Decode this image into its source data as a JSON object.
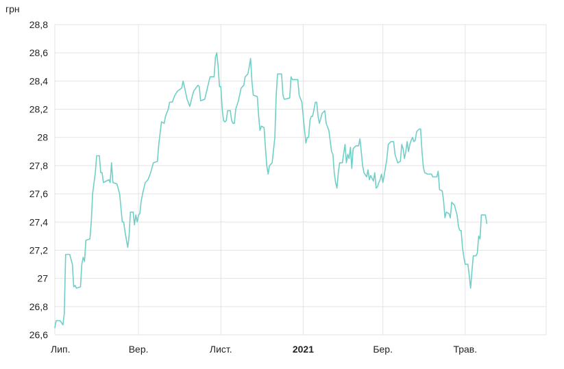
{
  "chart_data": {
    "type": "line",
    "title": "",
    "ylabel": "грн",
    "xlabel": "",
    "ylim": [
      26.6,
      28.8
    ],
    "y_ticks": [
      "28,8",
      "28,6",
      "28,4",
      "28,2",
      "28",
      "27,8",
      "27,6",
      "27,4",
      "27,2",
      "27",
      "26,8",
      "26,6"
    ],
    "x_ticks": [
      {
        "label": "Лип.",
        "date": "2020-07-01",
        "bold": false
      },
      {
        "label": "Вер.",
        "date": "2020-09-01",
        "bold": false
      },
      {
        "label": "Лист.",
        "date": "2020-11-01",
        "bold": false
      },
      {
        "label": "2021",
        "date": "2021-01-01",
        "bold": true
      },
      {
        "label": "Бер.",
        "date": "2021-03-01",
        "bold": false
      },
      {
        "label": "Трав.",
        "date": "2021-05-01",
        "bold": false
      }
    ],
    "x_range": [
      "2020-07-01",
      "2021-06-30"
    ],
    "grid": true,
    "legend": "none",
    "color": "#6fcfc7",
    "series": [
      {
        "values": [
          [
            "2020-07-01",
            26.65
          ],
          [
            "2020-07-02",
            26.7
          ],
          [
            "2020-07-05",
            26.7
          ],
          [
            "2020-07-07",
            26.67
          ],
          [
            "2020-07-08",
            26.75
          ],
          [
            "2020-07-09",
            27.17
          ],
          [
            "2020-07-12",
            27.17
          ],
          [
            "2020-07-14",
            27.1
          ],
          [
            "2020-07-15",
            26.94
          ],
          [
            "2020-07-16",
            26.95
          ],
          [
            "2020-07-17",
            26.93
          ],
          [
            "2020-07-20",
            26.94
          ],
          [
            "2020-07-21",
            27.1
          ],
          [
            "2020-07-22",
            27.15
          ],
          [
            "2020-07-23",
            27.12
          ],
          [
            "2020-07-24",
            27.27
          ],
          [
            "2020-07-27",
            27.28
          ],
          [
            "2020-07-28",
            27.4
          ],
          [
            "2020-07-29",
            27.6
          ],
          [
            "2020-07-31",
            27.75
          ],
          [
            "2020-08-01",
            27.87
          ],
          [
            "2020-08-03",
            27.87
          ],
          [
            "2020-08-04",
            27.75
          ],
          [
            "2020-08-05",
            27.75
          ],
          [
            "2020-08-06",
            27.68
          ],
          [
            "2020-08-10",
            27.7
          ],
          [
            "2020-08-11",
            27.68
          ],
          [
            "2020-08-12",
            27.82
          ],
          [
            "2020-08-13",
            27.68
          ],
          [
            "2020-08-16",
            27.67
          ],
          [
            "2020-08-18",
            27.6
          ],
          [
            "2020-08-20",
            27.4
          ],
          [
            "2020-08-21",
            27.4
          ],
          [
            "2020-08-22",
            27.33
          ],
          [
            "2020-08-24",
            27.22
          ],
          [
            "2020-08-25",
            27.3
          ],
          [
            "2020-08-26",
            27.47
          ],
          [
            "2020-08-28",
            27.47
          ],
          [
            "2020-08-29",
            27.38
          ],
          [
            "2020-08-30",
            27.45
          ],
          [
            "2020-08-31",
            27.4
          ],
          [
            "2020-09-01",
            27.45
          ],
          [
            "2020-09-02",
            27.46
          ],
          [
            "2020-09-03",
            27.55
          ],
          [
            "2020-09-04",
            27.6
          ],
          [
            "2020-09-06",
            27.68
          ],
          [
            "2020-09-08",
            27.7
          ],
          [
            "2020-09-10",
            27.75
          ],
          [
            "2020-09-12",
            27.82
          ],
          [
            "2020-09-15",
            27.83
          ],
          [
            "2020-09-16",
            27.95
          ],
          [
            "2020-09-18",
            28.11
          ],
          [
            "2020-09-20",
            28.1
          ],
          [
            "2020-09-21",
            28.15
          ],
          [
            "2020-09-23",
            28.2
          ],
          [
            "2020-09-24",
            28.25
          ],
          [
            "2020-09-26",
            28.25
          ],
          [
            "2020-09-28",
            28.3
          ],
          [
            "2020-09-30",
            28.33
          ],
          [
            "2020-10-03",
            28.35
          ],
          [
            "2020-10-04",
            28.4
          ],
          [
            "2020-10-05",
            28.36
          ],
          [
            "2020-10-07",
            28.27
          ],
          [
            "2020-10-09",
            28.22
          ],
          [
            "2020-10-11",
            28.3
          ],
          [
            "2020-10-12",
            28.33
          ],
          [
            "2020-10-15",
            28.37
          ],
          [
            "2020-10-16",
            28.36
          ],
          [
            "2020-10-17",
            28.26
          ],
          [
            "2020-10-20",
            28.27
          ],
          [
            "2020-10-22",
            28.35
          ],
          [
            "2020-10-24",
            28.43
          ],
          [
            "2020-10-27",
            28.43
          ],
          [
            "2020-10-28",
            28.57
          ],
          [
            "2020-10-29",
            28.6
          ],
          [
            "2020-10-30",
            28.5
          ],
          [
            "2020-10-31",
            28.36
          ],
          [
            "2020-11-01",
            28.36
          ],
          [
            "2020-11-02",
            28.2
          ],
          [
            "2020-11-03",
            28.12
          ],
          [
            "2020-11-04",
            28.11
          ],
          [
            "2020-11-05",
            28.12
          ],
          [
            "2020-11-06",
            28.19
          ],
          [
            "2020-11-08",
            28.19
          ],
          [
            "2020-11-09",
            28.12
          ],
          [
            "2020-11-10",
            28.1
          ],
          [
            "2020-11-11",
            28.1
          ],
          [
            "2020-11-12",
            28.2
          ],
          [
            "2020-11-14",
            28.26
          ],
          [
            "2020-11-16",
            28.35
          ],
          [
            "2020-11-18",
            28.37
          ],
          [
            "2020-11-19",
            28.43
          ],
          [
            "2020-11-21",
            28.45
          ],
          [
            "2020-11-22",
            28.5
          ],
          [
            "2020-11-23",
            28.56
          ],
          [
            "2020-11-24",
            28.4
          ],
          [
            "2020-11-25",
            28.3
          ],
          [
            "2020-11-28",
            28.29
          ],
          [
            "2020-11-29",
            28.15
          ],
          [
            "2020-11-30",
            28.05
          ],
          [
            "2020-12-01",
            28.08
          ],
          [
            "2020-12-03",
            28.07
          ],
          [
            "2020-12-04",
            27.93
          ],
          [
            "2020-12-05",
            27.8
          ],
          [
            "2020-12-06",
            27.74
          ],
          [
            "2020-12-07",
            27.8
          ],
          [
            "2020-12-09",
            27.82
          ],
          [
            "2020-12-11",
            28.0
          ],
          [
            "2020-12-12",
            28.3
          ],
          [
            "2020-12-13",
            28.45
          ],
          [
            "2020-12-16",
            28.45
          ],
          [
            "2020-12-17",
            28.3
          ],
          [
            "2020-12-18",
            28.27
          ],
          [
            "2020-12-22",
            28.28
          ],
          [
            "2020-12-23",
            28.43
          ],
          [
            "2020-12-24",
            28.41
          ],
          [
            "2020-12-28",
            28.41
          ],
          [
            "2020-12-29",
            28.3
          ],
          [
            "2020-12-31",
            28.25
          ],
          [
            "2021-01-01",
            28.15
          ],
          [
            "2021-01-02",
            28.05
          ],
          [
            "2021-01-03",
            27.96
          ],
          [
            "2021-01-04",
            28.0
          ],
          [
            "2021-01-05",
            28.0
          ],
          [
            "2021-01-06",
            28.12
          ],
          [
            "2021-01-07",
            28.15
          ],
          [
            "2021-01-08",
            28.15
          ],
          [
            "2021-01-09",
            28.2
          ],
          [
            "2021-01-10",
            28.25
          ],
          [
            "2021-01-11",
            28.25
          ],
          [
            "2021-01-12",
            28.15
          ],
          [
            "2021-01-13",
            28.1
          ],
          [
            "2021-01-15",
            28.17
          ],
          [
            "2021-01-17",
            28.19
          ],
          [
            "2021-01-18",
            28.1
          ],
          [
            "2021-01-20",
            28.05
          ],
          [
            "2021-01-22",
            27.9
          ],
          [
            "2021-01-23",
            27.88
          ],
          [
            "2021-01-24",
            27.75
          ],
          [
            "2021-01-25",
            27.68
          ],
          [
            "2021-01-26",
            27.64
          ],
          [
            "2021-01-27",
            27.75
          ],
          [
            "2021-01-28",
            27.82
          ],
          [
            "2021-01-30",
            27.82
          ],
          [
            "2021-02-01",
            27.95
          ],
          [
            "2021-02-02",
            27.82
          ],
          [
            "2021-02-03",
            27.88
          ],
          [
            "2021-02-04",
            27.85
          ],
          [
            "2021-02-05",
            27.93
          ],
          [
            "2021-02-06",
            27.78
          ],
          [
            "2021-02-07",
            27.92
          ],
          [
            "2021-02-09",
            27.94
          ],
          [
            "2021-02-11",
            27.94
          ],
          [
            "2021-02-12",
            27.99
          ],
          [
            "2021-02-13",
            27.9
          ],
          [
            "2021-02-14",
            27.8
          ],
          [
            "2021-02-15",
            27.75
          ],
          [
            "2021-02-17",
            27.72
          ],
          [
            "2021-02-18",
            27.77
          ],
          [
            "2021-02-19",
            27.7
          ],
          [
            "2021-02-20",
            27.73
          ],
          [
            "2021-02-22",
            27.69
          ],
          [
            "2021-02-23",
            27.75
          ],
          [
            "2021-02-24",
            27.64
          ],
          [
            "2021-02-25",
            27.65
          ],
          [
            "2021-02-26",
            27.68
          ],
          [
            "2021-02-27",
            27.7
          ],
          [
            "2021-02-28",
            27.74
          ],
          [
            "2021-03-01",
            27.68
          ],
          [
            "2021-03-02",
            27.73
          ],
          [
            "2021-03-04",
            27.85
          ],
          [
            "2021-03-05",
            27.95
          ],
          [
            "2021-03-07",
            27.97
          ],
          [
            "2021-03-09",
            27.97
          ],
          [
            "2021-03-10",
            27.88
          ],
          [
            "2021-03-12",
            27.82
          ],
          [
            "2021-03-14",
            27.83
          ],
          [
            "2021-03-15",
            27.95
          ],
          [
            "2021-03-16",
            27.92
          ],
          [
            "2021-03-17",
            27.85
          ],
          [
            "2021-03-18",
            27.9
          ],
          [
            "2021-03-19",
            27.97
          ],
          [
            "2021-03-20",
            27.9
          ],
          [
            "2021-03-21",
            27.95
          ],
          [
            "2021-03-22",
            27.98
          ],
          [
            "2021-03-23",
            28.0
          ],
          [
            "2021-03-24",
            27.97
          ],
          [
            "2021-03-25",
            27.98
          ],
          [
            "2021-03-26",
            28.04
          ],
          [
            "2021-03-28",
            28.06
          ],
          [
            "2021-03-29",
            28.06
          ],
          [
            "2021-03-30",
            27.9
          ],
          [
            "2021-03-31",
            27.79
          ],
          [
            "2021-04-01",
            27.75
          ],
          [
            "2021-04-03",
            27.74
          ],
          [
            "2021-04-06",
            27.74
          ],
          [
            "2021-04-07",
            27.72
          ],
          [
            "2021-04-10",
            27.72
          ],
          [
            "2021-04-11",
            27.76
          ],
          [
            "2021-04-12",
            27.63
          ],
          [
            "2021-04-14",
            27.62
          ],
          [
            "2021-04-15",
            27.55
          ],
          [
            "2021-04-16",
            27.43
          ],
          [
            "2021-04-17",
            27.47
          ],
          [
            "2021-04-19",
            27.46
          ],
          [
            "2021-04-20",
            27.43
          ],
          [
            "2021-04-21",
            27.54
          ],
          [
            "2021-04-23",
            27.52
          ],
          [
            "2021-04-25",
            27.45
          ],
          [
            "2021-04-26",
            27.37
          ],
          [
            "2021-04-27",
            27.34
          ],
          [
            "2021-04-28",
            27.34
          ],
          [
            "2021-04-29",
            27.22
          ],
          [
            "2021-04-30",
            27.15
          ],
          [
            "2021-05-01",
            27.1
          ],
          [
            "2021-05-03",
            27.1
          ],
          [
            "2021-05-04",
            27.02
          ],
          [
            "2021-05-05",
            26.93
          ],
          [
            "2021-05-06",
            27.05
          ],
          [
            "2021-05-07",
            27.16
          ],
          [
            "2021-05-09",
            27.16
          ],
          [
            "2021-05-10",
            27.18
          ],
          [
            "2021-05-11",
            27.3
          ],
          [
            "2021-05-12",
            27.28
          ],
          [
            "2021-05-13",
            27.45
          ],
          [
            "2021-05-16",
            27.45
          ],
          [
            "2021-05-17",
            27.39
          ]
        ]
      }
    ]
  }
}
